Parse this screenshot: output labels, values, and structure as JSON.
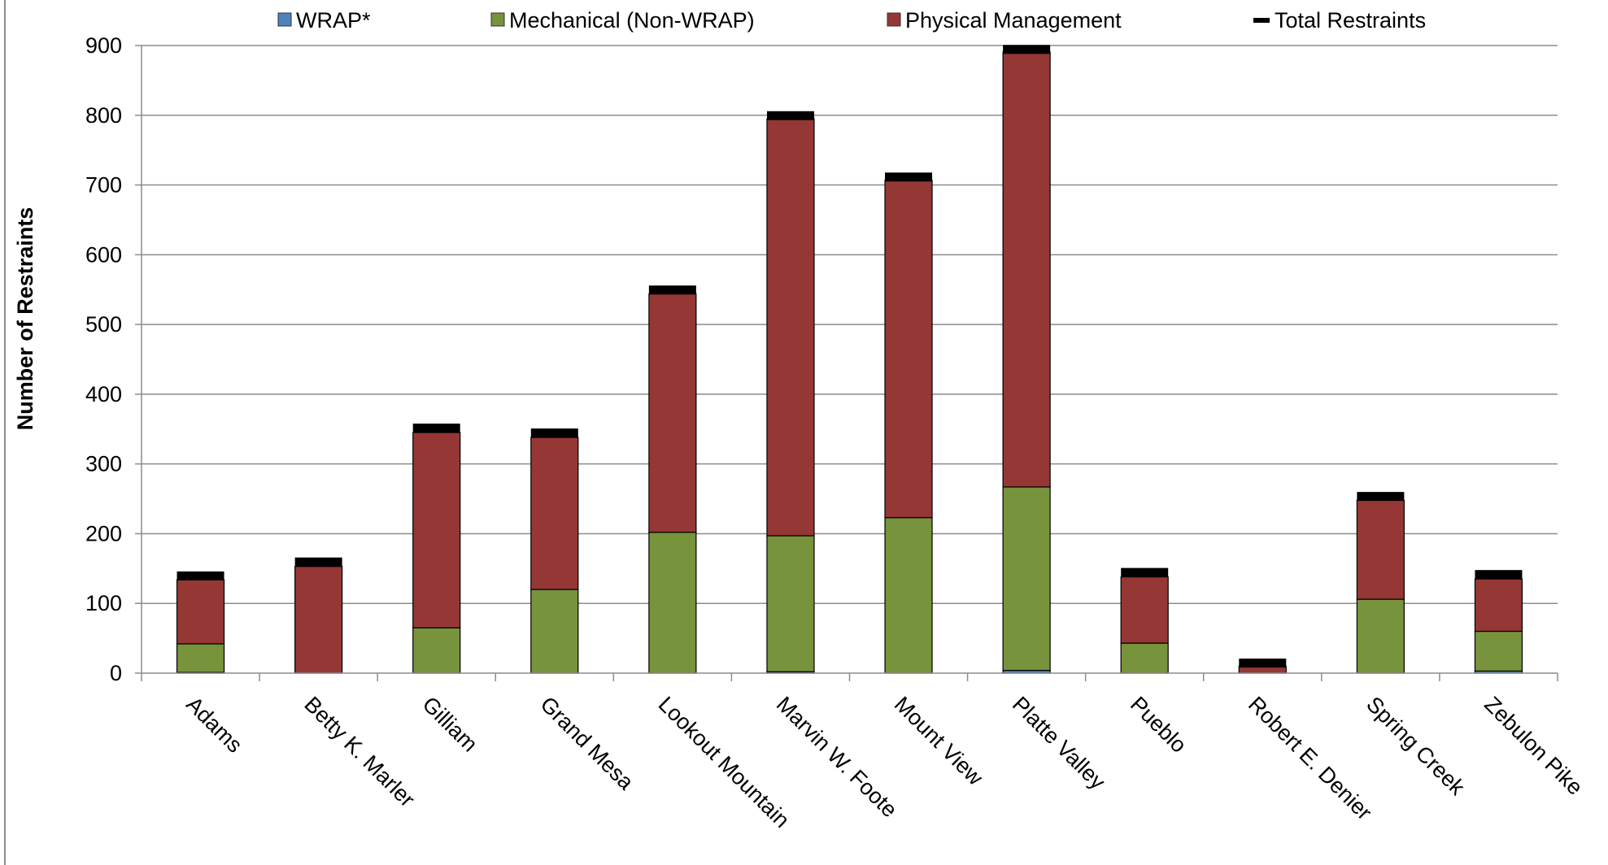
{
  "chart_data": {
    "type": "bar",
    "stacked": true,
    "title": "",
    "xlabel": "",
    "ylabel": "Number of Restraints",
    "ylim": [
      0,
      900
    ],
    "yticks": [
      0,
      100,
      200,
      300,
      400,
      500,
      600,
      700,
      800,
      900
    ],
    "grid": true,
    "legend_position": "top",
    "categories": [
      "Adams",
      "Betty K. Marler",
      "Gilliam",
      "Grand Mesa",
      "Lookout Mountain",
      "Marvin W. Foote",
      "Mount View",
      "Platte Valley",
      "Pueblo",
      "Robert E. Denier",
      "Spring Creek",
      "Zebulon Pike"
    ],
    "series": [
      {
        "name": "WRAP*",
        "color": "#4f81bd",
        "values": [
          1,
          0,
          0,
          0,
          0,
          2,
          0,
          4,
          0,
          0,
          0,
          3
        ]
      },
      {
        "name": "Mechanical (Non-WRAP)",
        "color": "#77933c",
        "values": [
          41,
          0,
          65,
          120,
          202,
          195,
          223,
          263,
          43,
          0,
          106,
          57
        ]
      },
      {
        "name": "Physical Management",
        "color": "#953735",
        "values": [
          92,
          153,
          280,
          218,
          342,
          598,
          484,
          624,
          95,
          10,
          142,
          75
        ]
      }
    ],
    "totals": {
      "name": "Total Restraints",
      "color": "#000000",
      "values": [
        140,
        160,
        352,
        345,
        550,
        800,
        712,
        895,
        145,
        15,
        254,
        142
      ]
    }
  }
}
